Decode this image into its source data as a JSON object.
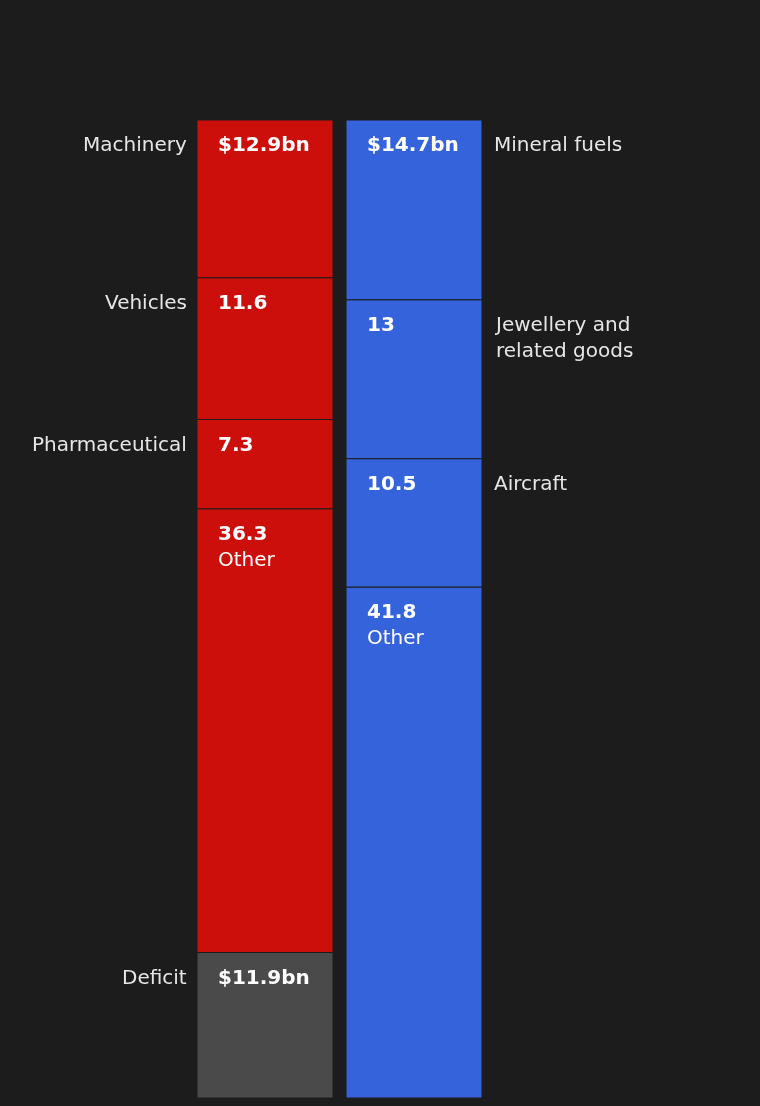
{
  "chart_data": {
    "type": "bar",
    "stacked": true,
    "categories": [
      null,
      null
    ],
    "legend": false,
    "series": [
      {
        "name": "Deficit",
        "color": "#4a4a4a",
        "values": [
          11.9,
          null
        ],
        "value_labels": [
          "$11.9bn",
          null
        ]
      },
      {
        "name": "Other",
        "color": "#cc0f0a",
        "values": [
          36.3,
          null
        ],
        "value_labels": [
          "36.3",
          null
        ]
      },
      {
        "name": "Pharmaceutical",
        "color": "#cc0f0a",
        "values": [
          7.3,
          null
        ],
        "value_labels": [
          "7.3",
          null
        ]
      },
      {
        "name": "Vehicles",
        "color": "#cc0f0a",
        "values": [
          11.6,
          null
        ],
        "value_labels": [
          "11.6",
          null
        ]
      },
      {
        "name": "Machinery",
        "color": "#cc0f0a",
        "values": [
          12.9,
          null
        ],
        "value_labels": [
          "$12.9bn",
          null
        ]
      },
      {
        "name": "Other",
        "color": "#3563dc",
        "values": [
          null,
          41.8
        ],
        "value_labels": [
          null,
          "41.8"
        ]
      },
      {
        "name": "Aircraft",
        "color": "#3563dc",
        "values": [
          null,
          10.5
        ],
        "value_labels": [
          null,
          "10.5"
        ]
      },
      {
        "name": "Jewellery and related goods",
        "color": "#3563dc",
        "values": [
          null,
          13
        ],
        "value_labels": [
          null,
          "13"
        ]
      },
      {
        "name": "Mineral fuels",
        "color": "#3563dc",
        "values": [
          null,
          14.7
        ],
        "value_labels": [
          null,
          "$14.7bn"
        ]
      }
    ]
  }
}
